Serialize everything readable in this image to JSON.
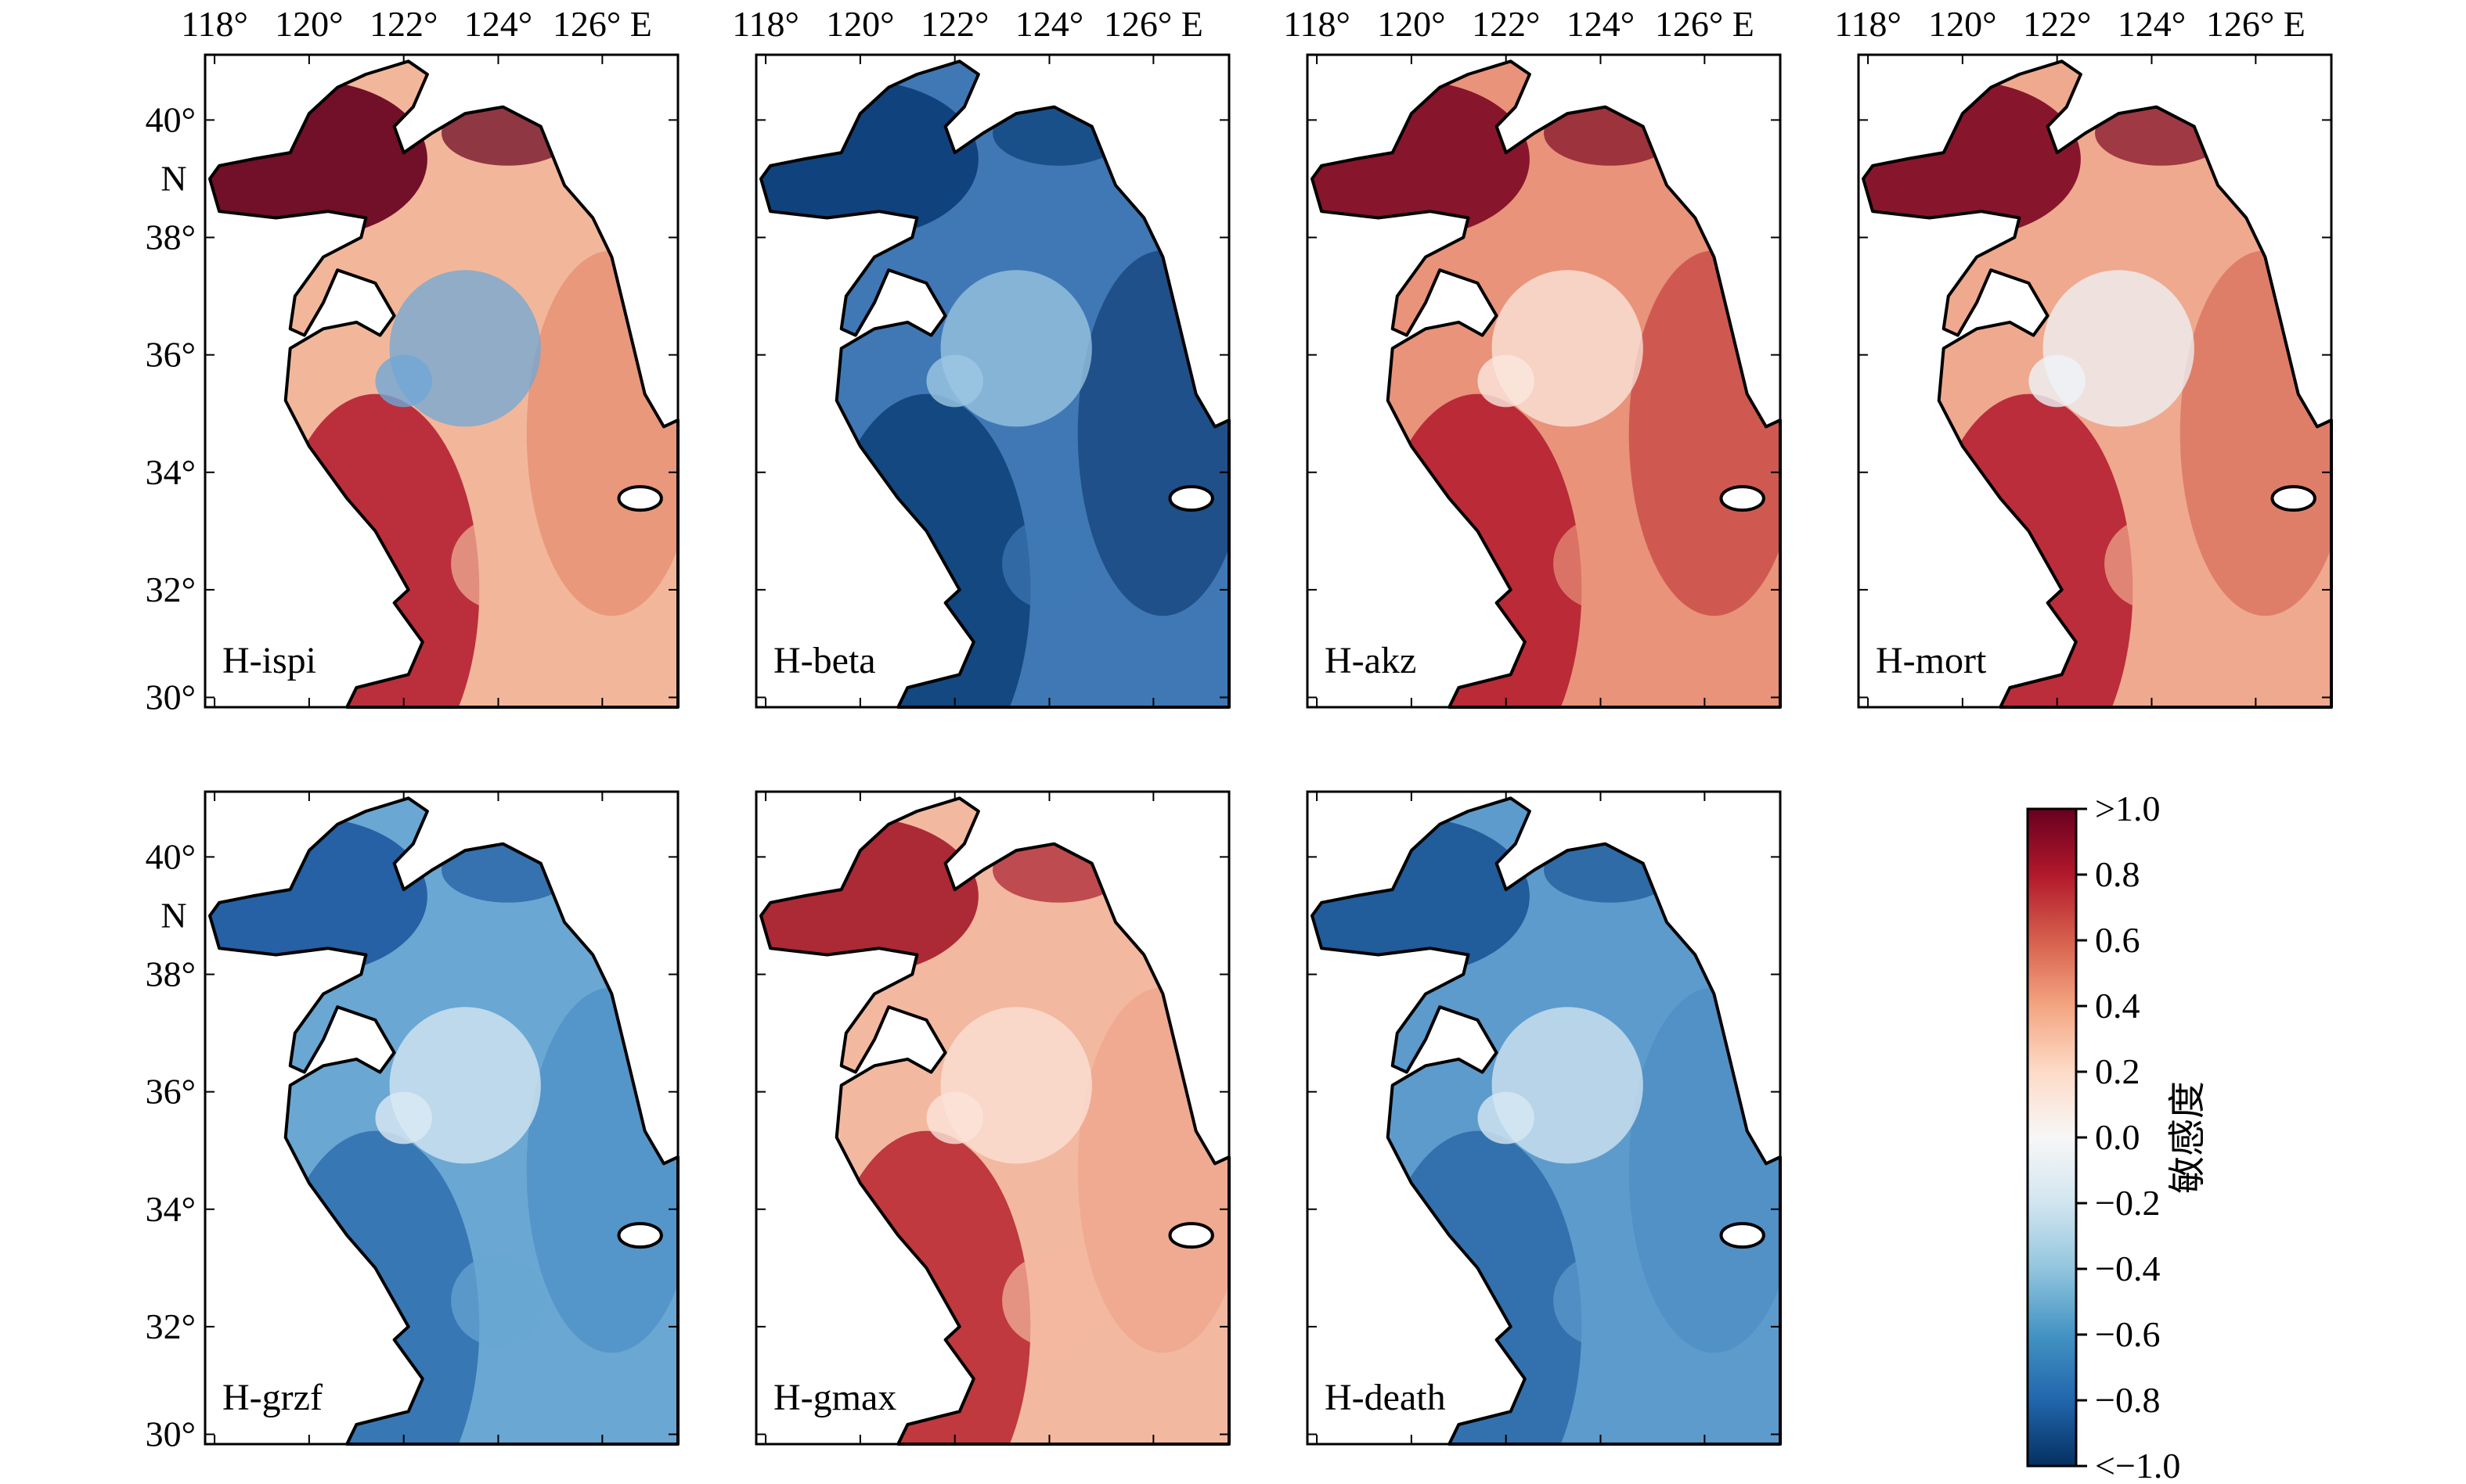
{
  "colors": {
    "strong_positive": "#67001f",
    "positive": "#b2182b",
    "mid_positive": "#d6604d",
    "light_positive": "#f4a582",
    "pale_positive": "#fddbc7",
    "neutral": "#f7f7f7",
    "pale_negative": "#d1e5f0",
    "light_negative": "#92c5de",
    "mid_negative": "#4393c3",
    "negative": "#2166ac",
    "strong_negative": "#053061"
  },
  "axes": {
    "lon_ticks": [
      "118°",
      "120°",
      "122°",
      "124°",
      "126° E"
    ],
    "lat_ticks": [
      "40°",
      "38°",
      "36°",
      "34°",
      "32°",
      "30°"
    ],
    "lat_unit": "N"
  },
  "panels": [
    {
      "label": "H-ispi",
      "interior": "#f2b79a",
      "coast": "#67001f",
      "south": "#b2182b",
      "east": "#e68a6d",
      "blob": "#6fa8d6"
    },
    {
      "label": "H-beta",
      "interior": "#3f78b5",
      "coast": "#0c3f78",
      "south": "#0c3f78",
      "east": "#123f78",
      "blob": "#9ec8e3"
    },
    {
      "label": "H-akz",
      "interior": "#e8937a",
      "coast": "#7e0a24",
      "south": "#b2182b",
      "east": "#c5403f",
      "blob": "#fbe8df"
    },
    {
      "label": "H-mort",
      "interior": "#efa98f",
      "coast": "#7e0a24",
      "south": "#b2182b",
      "east": "#d96c57",
      "blob": "#eef4f8"
    },
    {
      "label": "H-grzf",
      "interior": "#6aa7d3",
      "coast": "#1f5b9f",
      "south": "#2e6fae",
      "east": "#4b8fc4",
      "blob": "#dbeaf4"
    },
    {
      "label": "H-gmax",
      "interior": "#f3b8a0",
      "coast": "#a61c2c",
      "south": "#b5222d",
      "east": "#eea48b",
      "blob": "#fbe3d8"
    },
    {
      "label": "H-death",
      "interior": "#5c9bcc",
      "coast": "#1c5797",
      "south": "#2c6aa8",
      "east": "#4d8dc2",
      "blob": "#d6e7f3"
    }
  ],
  "colorbar": {
    "tick_labels": [
      ">1.0",
      "0.8",
      "0.6",
      "0.4",
      "0.2",
      "0.0",
      "−0.2",
      "−0.4",
      "−0.6",
      "−0.8",
      "<−1.0"
    ],
    "title": "敏感度",
    "min": -1.0,
    "max": 1.0
  }
}
